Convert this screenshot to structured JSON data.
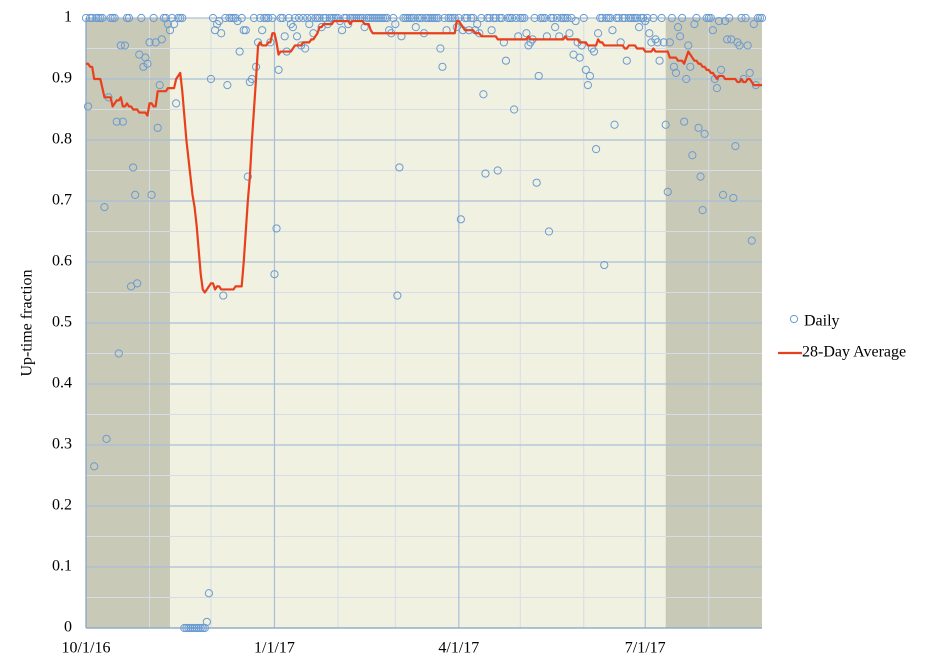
{
  "chart_data": {
    "type": "scatter",
    "y_label": "Up-time fraction",
    "xlim": [
      0,
      330
    ],
    "ylim": [
      0,
      1
    ],
    "xticks": [
      {
        "value": 0,
        "label": "10/1/16"
      },
      {
        "value": 92,
        "label": "1/1/17"
      },
      {
        "value": 182,
        "label": "4/1/17"
      },
      {
        "value": 273,
        "label": "7/1/17"
      }
    ],
    "xminorticks": [
      31,
      61,
      123,
      151,
      212,
      243,
      304
    ],
    "yticks": [
      0,
      0.1,
      0.2,
      0.3,
      0.4,
      0.5,
      0.6,
      0.7,
      0.8,
      0.9,
      1
    ],
    "yminorticks": [
      0.05,
      0.15,
      0.25,
      0.35,
      0.45,
      0.55,
      0.65,
      0.75,
      0.85,
      0.95
    ],
    "grid": true,
    "legend": "right",
    "shaded_regions": [
      {
        "x0": 0,
        "x1": 41
      },
      {
        "x0": 283,
        "x1": 330
      }
    ],
    "x": [
      0,
      1,
      2,
      3,
      4,
      5,
      6,
      7,
      8,
      9,
      10,
      11,
      12,
      13,
      14,
      15,
      16,
      17,
      18,
      19,
      20,
      21,
      22,
      23,
      24,
      25,
      26,
      27,
      28,
      29,
      30,
      31,
      32,
      33,
      34,
      35,
      36,
      37,
      38,
      39,
      40,
      41,
      42,
      43,
      44,
      45,
      46,
      47,
      48,
      49,
      50,
      51,
      52,
      53,
      54,
      55,
      56,
      57,
      58,
      59,
      60,
      61,
      62,
      63,
      64,
      65,
      66,
      67,
      68,
      69,
      70,
      71,
      72,
      73,
      74,
      75,
      76,
      77,
      78,
      79,
      80,
      81,
      82,
      83,
      84,
      85,
      86,
      87,
      88,
      89,
      90,
      91,
      92,
      93,
      94,
      95,
      96,
      97,
      98,
      99,
      100,
      101,
      102,
      103,
      104,
      105,
      106,
      107,
      108,
      109,
      110,
      111,
      112,
      113,
      114,
      115,
      116,
      117,
      118,
      119,
      120,
      121,
      122,
      123,
      124,
      125,
      126,
      127,
      128,
      129,
      130,
      131,
      132,
      133,
      134,
      135,
      136,
      137,
      138,
      139,
      140,
      141,
      142,
      143,
      144,
      145,
      146,
      147,
      148,
      149,
      150,
      151,
      152,
      153,
      154,
      155,
      156,
      157,
      158,
      159,
      160,
      161,
      162,
      163,
      164,
      165,
      166,
      167,
      168,
      169,
      170,
      171,
      172,
      173,
      174,
      175,
      176,
      177,
      178,
      179,
      180,
      181,
      182,
      183,
      184,
      185,
      186,
      187,
      188,
      189,
      190,
      191,
      192,
      193,
      194,
      195,
      196,
      197,
      198,
      199,
      200,
      201,
      202,
      203,
      204,
      205,
      206,
      207,
      208,
      209,
      210,
      211,
      212,
      213,
      214,
      215,
      216,
      217,
      218,
      219,
      220,
      221,
      222,
      223,
      224,
      225,
      226,
      227,
      228,
      229,
      230,
      231,
      232,
      233,
      234,
      235,
      236,
      237,
      238,
      239,
      240,
      241,
      242,
      243,
      244,
      245,
      246,
      247,
      248,
      249,
      250,
      251,
      252,
      253,
      254,
      255,
      256,
      257,
      258,
      259,
      260,
      261,
      262,
      263,
      264,
      265,
      266,
      267,
      268,
      269,
      270,
      271,
      272,
      273,
      274,
      275,
      276,
      277,
      278,
      279,
      280,
      281,
      282,
      283,
      284,
      285,
      286,
      287,
      288,
      289,
      290,
      291,
      292,
      293,
      294,
      295,
      296,
      297,
      298,
      299,
      300,
      301,
      302,
      303,
      304,
      305,
      306,
      307,
      308,
      309,
      310,
      311,
      312,
      313,
      314,
      315,
      316,
      317,
      318,
      319,
      320,
      321,
      322,
      323,
      324,
      325,
      326,
      327,
      328,
      329,
      330
    ],
    "series": [
      {
        "name": "Daily",
        "type": "scatter",
        "color": "#6b9bd1",
        "values": [
          1,
          0.855,
          1,
          1,
          0.265,
          1,
          1,
          1,
          1,
          0.69,
          0.31,
          0.87,
          1,
          1,
          1,
          0.83,
          0.45,
          0.955,
          0.83,
          0.955,
          1,
          1,
          0.56,
          0.755,
          0.71,
          0.565,
          0.94,
          1,
          0.92,
          0.935,
          0.925,
          0.96,
          0.71,
          1,
          0.96,
          0.82,
          0.89,
          0.965,
          1,
          1,
          0.99,
          0.98,
          1,
          0.99,
          0.86,
          1,
          1,
          1,
          0,
          0,
          0,
          0,
          0,
          0,
          0,
          0,
          0,
          0,
          0,
          0.01,
          0.057,
          0.9,
          1,
          0.98,
          0.99,
          0.995,
          0.975,
          0.545,
          1,
          0.89,
          1,
          1,
          1,
          1,
          0.995,
          0.945,
          1,
          0.98,
          0.98,
          0.74,
          0.895,
          0.9,
          1,
          0.92,
          0.96,
          1,
          0.98,
          1,
          1,
          1,
          0.96,
          1,
          0.58,
          0.655,
          0.915,
          1,
          1,
          0.97,
          0.945,
          1,
          0.99,
          0.985,
          1,
          0.97,
          1,
          0.955,
          1,
          0.95,
          1,
          0.99,
          1,
          0.975,
          1,
          1,
          1,
          0.985,
          1,
          1,
          0.99,
          1,
          1,
          1,
          1,
          1,
          0.995,
          0.98,
          1,
          1,
          0.99,
          1,
          1,
          1,
          1,
          1,
          1,
          1,
          0.985,
          1,
          1,
          1,
          1,
          1,
          1,
          1,
          1,
          1,
          1,
          1,
          0.98,
          0.975,
          1,
          0.99,
          0.545,
          0.755,
          0.97,
          1,
          1,
          1,
          1,
          1,
          1,
          0.985,
          1,
          1,
          1,
          0.975,
          1,
          1,
          1,
          1,
          1,
          1,
          1,
          0.95,
          0.92,
          1,
          0.98,
          1,
          1,
          1,
          1,
          0.985,
          1,
          0.67,
          0.98,
          1,
          1,
          0.98,
          1,
          1,
          0.98,
          0.99,
          0.975,
          1,
          0.875,
          0.745,
          1,
          1,
          0.98,
          1,
          1,
          0.75,
          1,
          1,
          0.96,
          0.93,
          1,
          1,
          1,
          0.85,
          1,
          0.97,
          1,
          1,
          1,
          0.975,
          0.955,
          0.96,
          0.965,
          1,
          0.73,
          0.905,
          1,
          1,
          1,
          0.97,
          0.65,
          1,
          1,
          0.985,
          1,
          0.97,
          1,
          1,
          1,
          1,
          0.975,
          1,
          0.94,
          0.995,
          0.96,
          0.935,
          0.955,
          1,
          0.915,
          0.89,
          0.905,
          0.95,
          0.945,
          0.785,
          0.975,
          1,
          1,
          0.595,
          1,
          1,
          1,
          0.98,
          0.825,
          1,
          1,
          0.96,
          1,
          1,
          0.93,
          1,
          1,
          1,
          1,
          1,
          0.985,
          1,
          1,
          0.995,
          1,
          0.975,
          0.96,
          1,
          0.965,
          0.96,
          0.93,
          1,
          0.96,
          0.825,
          0.715,
          0.96,
          1,
          0.92,
          0.91,
          0.985,
          0.97,
          1,
          0.83,
          0.9,
          0.955,
          0.92,
          0.775,
          0.99,
          1,
          0.82,
          0.74,
          0.685,
          0.81,
          1,
          1,
          1,
          0.98,
          0.9,
          0.885,
          0.995,
          0.915,
          0.71,
          0.995,
          0.965,
          1,
          0.965,
          0.705,
          0.79,
          0.96,
          0.955,
          1,
          0.9,
          1,
          0.955,
          0.91,
          0.635,
          0.99,
          0.89,
          1,
          1,
          1
        ]
      },
      {
        "name": "28-Day Average",
        "type": "line",
        "color": "#e8401c",
        "values": [
          0.925,
          0.925,
          0.92,
          0.92,
          0.9,
          0.9,
          0.9,
          0.9,
          0.885,
          0.87,
          0.87,
          0.87,
          0.87,
          0.855,
          0.86,
          0.865,
          0.865,
          0.87,
          0.855,
          0.855,
          0.86,
          0.855,
          0.855,
          0.85,
          0.85,
          0.85,
          0.845,
          0.845,
          0.845,
          0.845,
          0.84,
          0.86,
          0.86,
          0.855,
          0.855,
          0.88,
          0.88,
          0.88,
          0.88,
          0.88,
          0.885,
          0.885,
          0.885,
          0.885,
          0.9,
          0.905,
          0.91,
          0.88,
          0.84,
          0.8,
          0.77,
          0.74,
          0.71,
          0.69,
          0.66,
          0.62,
          0.58,
          0.555,
          0.55,
          0.555,
          0.56,
          0.565,
          0.565,
          0.555,
          0.56,
          0.56,
          0.555,
          0.555,
          0.555,
          0.555,
          0.555,
          0.555,
          0.555,
          0.56,
          0.56,
          0.56,
          0.56,
          0.6,
          0.65,
          0.7,
          0.74,
          0.8,
          0.85,
          0.9,
          0.955,
          0.96,
          0.955,
          0.955,
          0.955,
          0.96,
          0.96,
          0.975,
          0.975,
          0.96,
          0.94,
          0.945,
          0.945,
          0.945,
          0.945,
          0.945,
          0.945,
          0.95,
          0.955,
          0.955,
          0.955,
          0.955,
          0.96,
          0.96,
          0.96,
          0.96,
          0.965,
          0.965,
          0.97,
          0.975,
          0.985,
          0.985,
          0.99,
          0.99,
          0.99,
          0.99,
          0.99,
          0.995,
          0.995,
          0.995,
          0.995,
          0.995,
          0.995,
          0.995,
          0.995,
          0.99,
          0.995,
          0.995,
          0.995,
          0.995,
          0.995,
          0.995,
          0.99,
          0.99,
          0.99,
          0.98,
          0.975,
          0.975,
          0.975,
          0.975,
          0.975,
          0.975,
          0.975,
          0.975,
          0.975,
          0.975,
          0.975,
          0.975,
          0.975,
          0.975,
          0.975,
          0.975,
          0.975,
          0.975,
          0.975,
          0.975,
          0.975,
          0.975,
          0.975,
          0.975,
          0.975,
          0.975,
          0.975,
          0.975,
          0.975,
          0.975,
          0.975,
          0.975,
          0.975,
          0.975,
          0.975,
          0.975,
          0.975,
          0.975,
          0.975,
          0.975,
          0.975,
          0.995,
          0.995,
          0.99,
          0.985,
          0.98,
          0.98,
          0.98,
          0.98,
          0.98,
          0.975,
          0.975,
          0.975,
          0.97,
          0.97,
          0.97,
          0.97,
          0.97,
          0.97,
          0.97,
          0.97,
          0.965,
          0.965,
          0.965,
          0.965,
          0.965,
          0.965,
          0.965,
          0.965,
          0.965,
          0.965,
          0.965,
          0.965,
          0.965,
          0.965,
          0.965,
          0.97,
          0.965,
          0.965,
          0.965,
          0.965,
          0.965,
          0.965,
          0.965,
          0.965,
          0.965,
          0.965,
          0.965,
          0.965,
          0.965,
          0.965,
          0.965,
          0.965,
          0.965,
          0.97,
          0.965,
          0.965,
          0.965,
          0.965,
          0.965,
          0.965,
          0.96,
          0.96,
          0.96,
          0.96,
          0.955,
          0.955,
          0.955,
          0.955,
          0.955,
          0.965,
          0.96,
          0.96,
          0.955,
          0.955,
          0.955,
          0.955,
          0.955,
          0.955,
          0.955,
          0.955,
          0.955,
          0.955,
          0.95,
          0.95,
          0.955,
          0.955,
          0.955,
          0.955,
          0.95,
          0.95,
          0.95,
          0.95,
          0.945,
          0.945,
          0.945,
          0.945,
          0.95,
          0.945,
          0.945,
          0.945,
          0.945,
          0.945,
          0.945,
          0.945,
          0.935,
          0.935,
          0.935,
          0.935,
          0.93,
          0.93,
          0.93,
          0.925,
          0.935,
          0.945,
          0.94,
          0.935,
          0.93,
          0.93,
          0.925,
          0.925,
          0.92,
          0.92,
          0.915,
          0.915,
          0.91,
          0.91,
          0.905,
          0.9,
          0.905,
          0.905,
          0.905,
          0.9,
          0.9,
          0.9,
          0.9,
          0.9,
          0.9,
          0.895,
          0.895,
          0.9,
          0.895,
          0.895,
          0.9,
          0.9,
          0.895,
          0.89,
          0.89,
          0.89,
          0.89,
          0.89
        ]
      }
    ]
  }
}
